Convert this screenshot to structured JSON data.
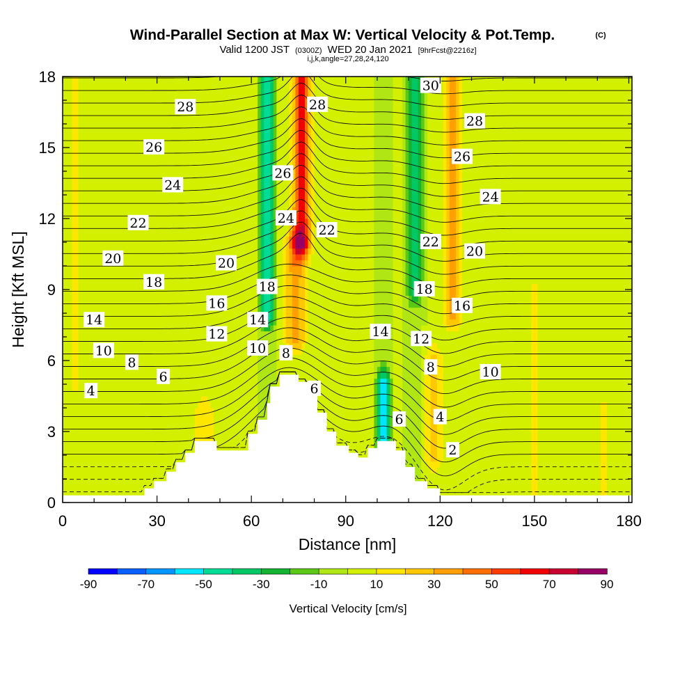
{
  "title": {
    "main": "Wind-Parallel Section at Max W: Vertical Velocity & Pot.Temp.",
    "copyright": "(C)",
    "valid_prefix": "Valid 1200 JST",
    "valid_utc": "(0300Z)",
    "valid_date": "WED 20 Jan 2021",
    "forecast": "[9hrFcst@2216z]",
    "section": "i,j,k,angle=27,28,24,120"
  },
  "chart_data": {
    "type": "heatmap",
    "xlabel": "Distance [nm]",
    "ylabel": "Height [Kft MSL]",
    "xlim": [
      0,
      181
    ],
    "ylim": [
      0,
      18
    ],
    "x_ticks": [
      0,
      30,
      60,
      90,
      120,
      150,
      180
    ],
    "y_ticks": [
      0,
      3,
      6,
      9,
      12,
      15,
      18
    ],
    "colorbar": {
      "title": "Vertical Velocity [cm/s]",
      "bounds": [
        -90,
        -80,
        -70,
        -60,
        -50,
        -40,
        -30,
        -20,
        -10,
        0,
        10,
        20,
        30,
        40,
        50,
        60,
        70,
        80,
        90
      ],
      "tick_labels": [
        "-90",
        "-70",
        "-50",
        "-30",
        "-10",
        "10",
        "30",
        "50",
        "70",
        "90"
      ],
      "colors": [
        "#0000ff",
        "#0a5fff",
        "#0096ff",
        "#00e6ff",
        "#00dc96",
        "#00c864",
        "#14b432",
        "#5ac814",
        "#afe614",
        "#d2f000",
        "#ffe600",
        "#ffc800",
        "#ffa000",
        "#ff6e00",
        "#ff3c00",
        "#f00000",
        "#c80032",
        "#960064"
      ]
    },
    "terrain": [
      [
        0,
        0.3
      ],
      [
        26,
        0.3
      ],
      [
        26,
        0.6
      ],
      [
        29,
        0.6
      ],
      [
        29,
        0.9
      ],
      [
        33,
        0.9
      ],
      [
        33,
        1.3
      ],
      [
        36,
        1.3
      ],
      [
        36,
        1.7
      ],
      [
        39,
        1.7
      ],
      [
        39,
        2.1
      ],
      [
        42,
        2.1
      ],
      [
        42,
        2.6
      ],
      [
        49,
        2.6
      ],
      [
        49,
        2.2
      ],
      [
        59,
        2.2
      ],
      [
        59,
        2.9
      ],
      [
        62,
        2.9
      ],
      [
        62,
        3.5
      ],
      [
        65,
        3.5
      ],
      [
        65,
        4.2
      ],
      [
        66,
        4.2
      ],
      [
        66,
        4.9
      ],
      [
        69,
        4.9
      ],
      [
        69,
        5.4
      ],
      [
        75,
        5.4
      ],
      [
        75,
        5.1
      ],
      [
        78,
        5.1
      ],
      [
        78,
        4.8
      ],
      [
        81,
        4.8
      ],
      [
        81,
        3.8
      ],
      [
        84,
        3.8
      ],
      [
        84,
        3.0
      ],
      [
        87,
        3.0
      ],
      [
        87,
        2.4
      ],
      [
        91,
        2.4
      ],
      [
        91,
        2.1
      ],
      [
        94,
        2.1
      ],
      [
        94,
        1.9
      ],
      [
        97,
        1.9
      ],
      [
        97,
        2.3
      ],
      [
        100,
        2.3
      ],
      [
        100,
        2.6
      ],
      [
        106,
        2.6
      ],
      [
        106,
        2.2
      ],
      [
        109,
        2.2
      ],
      [
        109,
        1.5
      ],
      [
        112,
        1.5
      ],
      [
        112,
        0.9
      ],
      [
        116,
        0.9
      ],
      [
        116,
        0.6
      ],
      [
        120,
        0.6
      ],
      [
        120,
        0.3
      ],
      [
        181,
        0.3
      ]
    ],
    "vertical_velocity": {
      "background": 0,
      "features": [
        {
          "x": 65,
          "x_half_width": 2.2,
          "y_bottom": 8,
          "y_top": 18,
          "value": -50
        },
        {
          "x": 76,
          "x_half_width": 2.8,
          "y_bottom": 11,
          "y_top": 18,
          "value": 65
        },
        {
          "x": 74,
          "x_half_width": 3.5,
          "y_bottom": 7,
          "y_top": 11,
          "value": 35
        },
        {
          "x": 112,
          "x_half_width": 2.5,
          "y_bottom": 9,
          "y_top": 18,
          "value": -35
        },
        {
          "x": 124,
          "x_half_width": 2.5,
          "y_bottom": 8,
          "y_top": 18,
          "value": 40
        },
        {
          "x": 102,
          "x_half_width": 2,
          "y_bottom": 2.5,
          "y_top": 5,
          "value": -55
        },
        {
          "x": 118,
          "x_half_width": 3,
          "y_bottom": 2,
          "y_top": 6,
          "value": 25
        },
        {
          "x": 45,
          "x_half_width": 4,
          "y_bottom": 2.5,
          "y_top": 4,
          "value": 15
        },
        {
          "x": 150,
          "x_half_width": 3,
          "y_bottom": 0.3,
          "y_top": 9,
          "value": 12
        },
        {
          "x": 4,
          "x_half_width": 3,
          "y_bottom": 5,
          "y_top": 18,
          "value": 12
        },
        {
          "x": 172,
          "x_half_width": 3,
          "y_bottom": 0.3,
          "y_top": 4,
          "value": 12
        }
      ]
    },
    "theta_contour_labels": [
      {
        "text": "28",
        "x": 39,
        "y": 16.7
      },
      {
        "text": "26",
        "x": 29,
        "y": 15.0
      },
      {
        "text": "24",
        "x": 35,
        "y": 13.4
      },
      {
        "text": "22",
        "x": 24,
        "y": 11.8
      },
      {
        "text": "20",
        "x": 16,
        "y": 10.3
      },
      {
        "text": "18",
        "x": 29,
        "y": 9.3
      },
      {
        "text": "14",
        "x": 10,
        "y": 7.7
      },
      {
        "text": "10",
        "x": 13,
        "y": 6.4
      },
      {
        "text": "8",
        "x": 22,
        "y": 5.9
      },
      {
        "text": "6",
        "x": 32,
        "y": 5.3
      },
      {
        "text": "4",
        "x": 9,
        "y": 4.7
      },
      {
        "text": "20",
        "x": 52,
        "y": 10.1
      },
      {
        "text": "16",
        "x": 49,
        "y": 8.4
      },
      {
        "text": "12",
        "x": 49,
        "y": 7.1
      },
      {
        "text": "14",
        "x": 62,
        "y": 7.7
      },
      {
        "text": "10",
        "x": 62,
        "y": 6.5
      },
      {
        "text": "18",
        "x": 65,
        "y": 9.1
      },
      {
        "text": "26",
        "x": 70,
        "y": 13.9
      },
      {
        "text": "24",
        "x": 71,
        "y": 12.0
      },
      {
        "text": "28",
        "x": 81,
        "y": 16.8
      },
      {
        "text": "22",
        "x": 84,
        "y": 11.5
      },
      {
        "text": "8",
        "x": 71,
        "y": 6.3
      },
      {
        "text": "6",
        "x": 80,
        "y": 4.8
      },
      {
        "text": "14",
        "x": 101,
        "y": 7.2
      },
      {
        "text": "12",
        "x": 114,
        "y": 6.9
      },
      {
        "text": "8",
        "x": 117,
        "y": 5.7
      },
      {
        "text": "6",
        "x": 107,
        "y": 3.5
      },
      {
        "text": "4",
        "x": 120,
        "y": 3.6
      },
      {
        "text": "2",
        "x": 124,
        "y": 2.2
      },
      {
        "text": "30",
        "x": 117,
        "y": 17.6
      },
      {
        "text": "28",
        "x": 131,
        "y": 16.1
      },
      {
        "text": "26",
        "x": 127,
        "y": 14.6
      },
      {
        "text": "24",
        "x": 136,
        "y": 12.9
      },
      {
        "text": "22",
        "x": 117,
        "y": 11.0
      },
      {
        "text": "20",
        "x": 131,
        "y": 10.6
      },
      {
        "text": "18",
        "x": 115,
        "y": 9.0
      },
      {
        "text": "16",
        "x": 127,
        "y": 8.3
      },
      {
        "text": "10",
        "x": 136,
        "y": 5.5
      }
    ]
  }
}
